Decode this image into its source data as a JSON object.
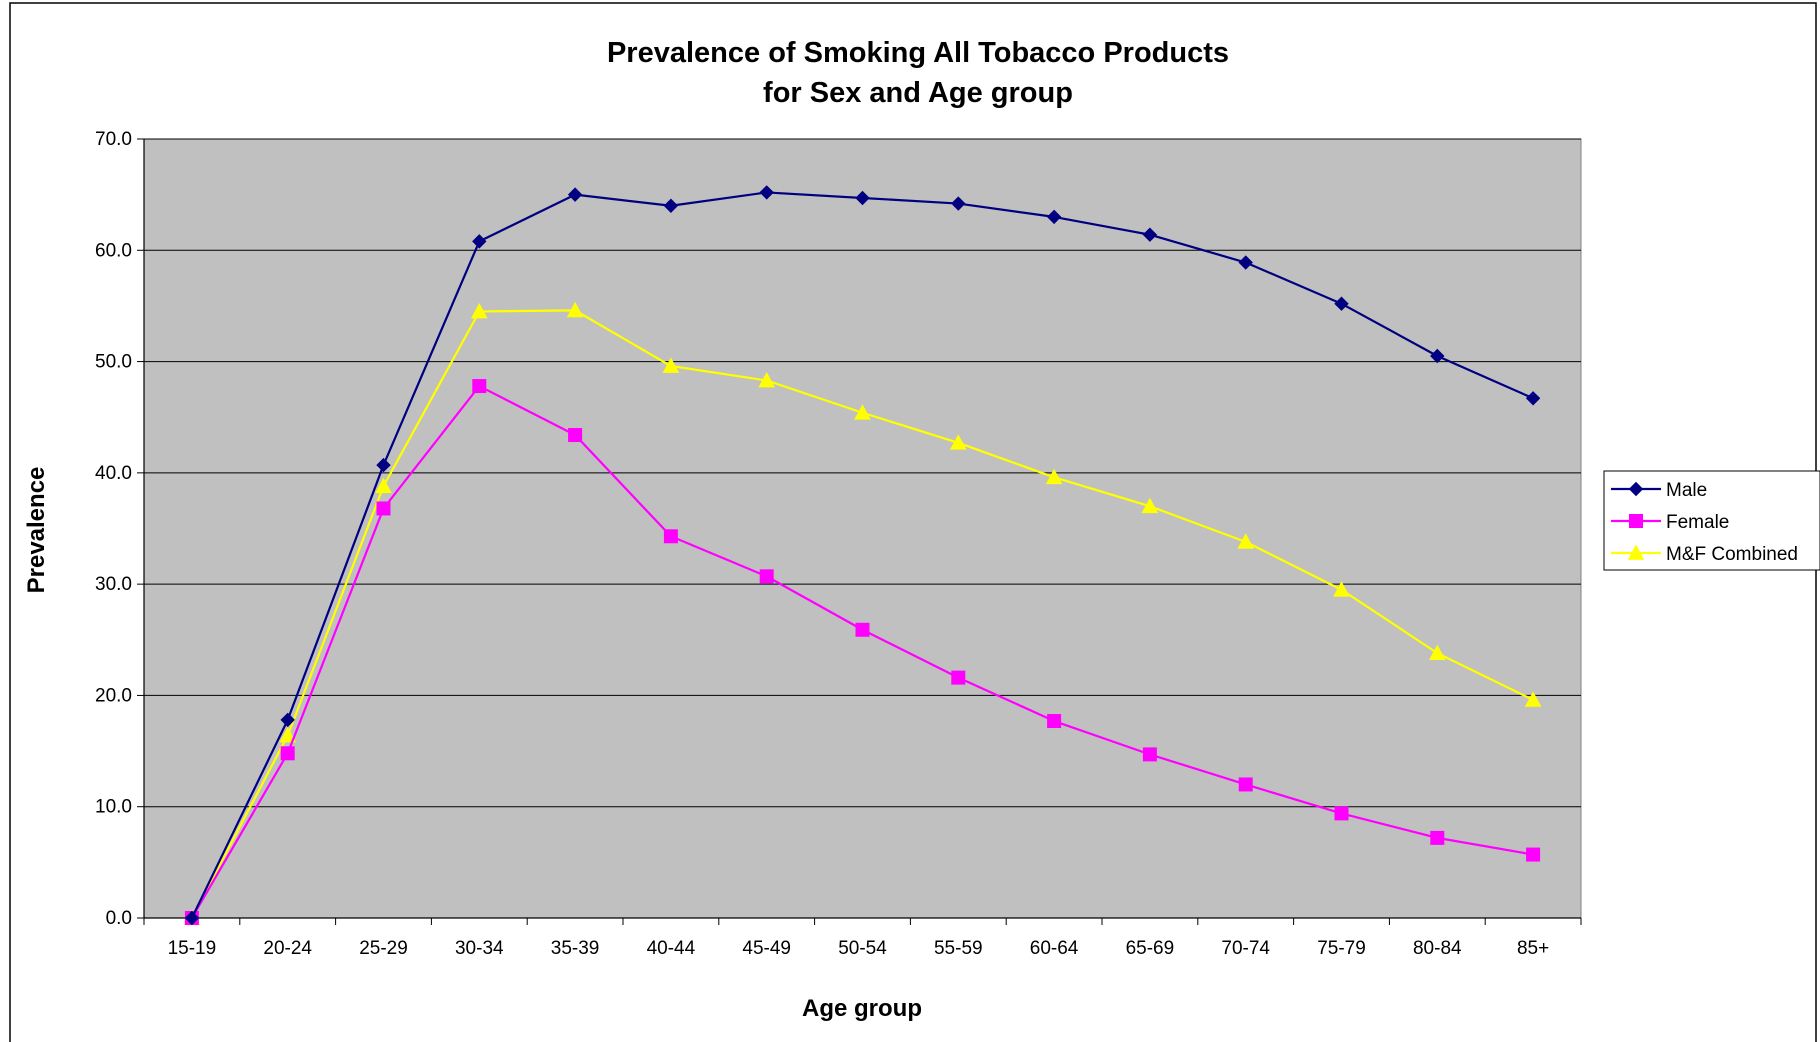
{
  "chart_data": {
    "type": "line",
    "title_lines": [
      "Prevalence of Smoking All Tobacco Products",
      "for Sex and Age group"
    ],
    "xlabel": "Age group",
    "ylabel": "Prevalence",
    "ylim": [
      0,
      70
    ],
    "y_ticks": [
      "0.0",
      "10.0",
      "20.0",
      "30.0",
      "40.0",
      "50.0",
      "60.0",
      "70.0"
    ],
    "grid": "horizontal",
    "legend_position": "right",
    "plot_background": "#c0c0c0",
    "categories": [
      "15-19",
      "20-24",
      "25-29",
      "30-34",
      "35-39",
      "40-44",
      "45-49",
      "50-54",
      "55-59",
      "60-64",
      "65-69",
      "70-74",
      "75-79",
      "80-84",
      "85+"
    ],
    "series": [
      {
        "name": "Male",
        "color": "#000080",
        "marker": "diamond",
        "values": [
          0.0,
          17.8,
          40.7,
          60.8,
          65.0,
          64.0,
          65.2,
          64.7,
          64.2,
          63.0,
          61.4,
          58.9,
          55.2,
          50.5,
          46.7
        ]
      },
      {
        "name": "Female",
        "color": "#ff00ff",
        "marker": "square",
        "values": [
          0.0,
          14.8,
          36.8,
          47.8,
          43.4,
          34.3,
          30.7,
          25.9,
          21.6,
          17.7,
          14.7,
          12.0,
          9.4,
          7.2,
          5.7
        ]
      },
      {
        "name": "M&F Combined",
        "color": "#ffff00",
        "marker": "triangle",
        "values": [
          0.0,
          16.4,
          38.8,
          54.5,
          54.6,
          49.6,
          48.3,
          45.4,
          42.7,
          39.6,
          37.0,
          33.8,
          29.5,
          23.8,
          19.6
        ]
      }
    ]
  }
}
